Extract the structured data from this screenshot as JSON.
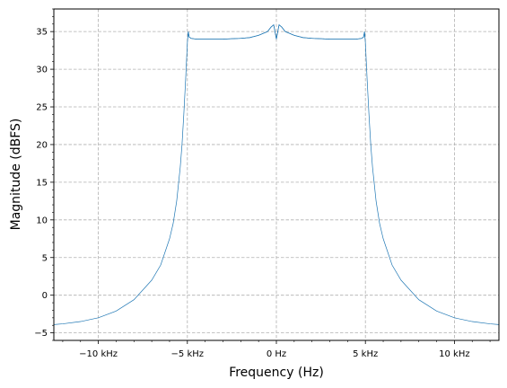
{
  "chart_data": {
    "type": "line",
    "title": "",
    "xlabel": "Frequency (Hz)",
    "ylabel": "Magnitude (dBFS)",
    "xlim": [
      -12500,
      12500
    ],
    "ylim": [
      -6,
      38
    ],
    "grid": true,
    "color": "#1f77b4",
    "x_ticks": [
      {
        "value": -10000,
        "label": "−10 kHz"
      },
      {
        "value": -5000,
        "label": "−5 kHz"
      },
      {
        "value": 0,
        "label": "0 Hz"
      },
      {
        "value": 5000,
        "label": "5 kHz"
      },
      {
        "value": 10000,
        "label": "10 kHz"
      }
    ],
    "y_ticks": [
      {
        "value": -5,
        "label": "−5"
      },
      {
        "value": 0,
        "label": "0"
      },
      {
        "value": 5,
        "label": "5"
      },
      {
        "value": 10,
        "label": "10"
      },
      {
        "value": 15,
        "label": "15"
      },
      {
        "value": 20,
        "label": "20"
      },
      {
        "value": 25,
        "label": "25"
      },
      {
        "value": 30,
        "label": "30"
      },
      {
        "value": 35,
        "label": "35"
      }
    ],
    "series": [
      {
        "x": [
          -12500,
          -12000,
          -11000,
          -10000,
          -9000,
          -8000,
          -7000,
          -6500,
          -6000,
          -5800,
          -5600,
          -5400,
          -5300,
          -5200,
          -5100,
          -5050,
          -5000,
          -4950,
          -4900,
          -4800,
          -4500,
          -4000,
          -3500,
          -3000,
          -2500,
          -2000,
          -1500,
          -1000,
          -500,
          -300,
          -150,
          0,
          150,
          300,
          500,
          1000,
          1500,
          2000,
          2500,
          3000,
          3500,
          4000,
          4500,
          4800,
          4900,
          4950,
          5000,
          5050,
          5100,
          5200,
          5300,
          5400,
          5600,
          5800,
          6000,
          6500,
          7000,
          8000,
          9000,
          10000,
          11000,
          12000,
          12500
        ],
        "y": [
          -3.9,
          -3.8,
          -3.5,
          -3.0,
          -2.1,
          -0.6,
          2.0,
          4.0,
          7.5,
          9.5,
          12.5,
          17.0,
          20.0,
          24.0,
          28.5,
          31.0,
          33.5,
          35.0,
          34.3,
          34.1,
          34.0,
          34.0,
          34.0,
          34.0,
          34.05,
          34.1,
          34.2,
          34.5,
          35.0,
          35.6,
          35.9,
          34.0,
          35.9,
          35.6,
          35.0,
          34.5,
          34.2,
          34.1,
          34.05,
          34.0,
          34.0,
          34.0,
          34.0,
          34.1,
          34.3,
          35.0,
          33.5,
          31.0,
          28.5,
          24.0,
          20.0,
          17.0,
          12.5,
          9.5,
          7.5,
          4.0,
          2.0,
          -0.6,
          -2.1,
          -3.0,
          -3.5,
          -3.8,
          -3.9
        ]
      }
    ]
  }
}
